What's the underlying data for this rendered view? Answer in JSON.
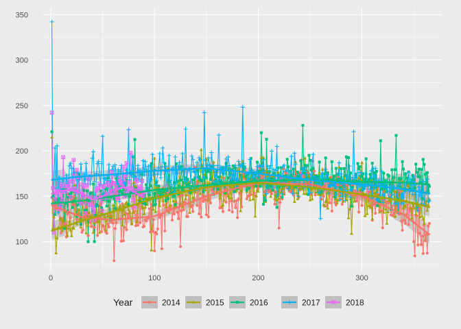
{
  "chart_data": {
    "type": "line",
    "title": "",
    "xlabel": "",
    "ylabel": "",
    "xlim": [
      -8,
      377
    ],
    "ylim": [
      68,
      357
    ],
    "x_ticks": [
      0,
      100,
      200,
      300
    ],
    "y_ticks": [
      100,
      150,
      200,
      250,
      300,
      350
    ],
    "grid": true,
    "legend": {
      "title": "Year",
      "position": "bottom"
    },
    "series": [
      {
        "name": "2014",
        "color": "#F8766D",
        "shape": "circle",
        "x_start": 1,
        "x_end": 365,
        "base": 140,
        "noise": 20,
        "seed": 11,
        "spikes": [
          [
            61,
            79
          ],
          [
            100,
            90
          ],
          [
            359,
            87
          ]
        ],
        "smooth": [
          [
            1,
            140
          ],
          [
            30,
            127
          ],
          [
            60,
            124
          ],
          [
            100,
            128
          ],
          [
            150,
            150
          ],
          [
            200,
            165
          ],
          [
            250,
            163
          ],
          [
            300,
            150
          ],
          [
            340,
            130
          ],
          [
            365,
            108
          ]
        ]
      },
      {
        "name": "2015",
        "color": "#A3A500",
        "shape": "triangle",
        "x_start": 1,
        "x_end": 365,
        "base": 145,
        "noise": 20,
        "seed": 23,
        "spikes": [
          [
            1,
            215
          ],
          [
            145,
            201
          ],
          [
            290,
            109
          ]
        ],
        "smooth": [
          [
            1,
            112
          ],
          [
            30,
            123
          ],
          [
            60,
            133
          ],
          [
            100,
            148
          ],
          [
            150,
            160
          ],
          [
            200,
            165
          ],
          [
            250,
            160
          ],
          [
            300,
            152
          ],
          [
            340,
            145
          ],
          [
            365,
            138
          ]
        ]
      },
      {
        "name": "2016",
        "color": "#00BF7D",
        "shape": "square",
        "x_start": 1,
        "x_end": 365,
        "base": 155,
        "noise": 20,
        "seed": 37,
        "spikes": [
          [
            1,
            221
          ],
          [
            203,
            220
          ],
          [
            243,
            228
          ],
          [
            333,
            217
          ],
          [
            366,
            209
          ]
        ],
        "smooth": [
          [
            1,
            142
          ],
          [
            30,
            145
          ],
          [
            60,
            150
          ],
          [
            100,
            157
          ],
          [
            150,
            162
          ],
          [
            200,
            167
          ],
          [
            250,
            168
          ],
          [
            300,
            166
          ],
          [
            340,
            165
          ],
          [
            365,
            163
          ]
        ]
      },
      {
        "name": "2017",
        "color": "#00B0F6",
        "shape": "plus",
        "x_start": 1,
        "x_end": 365,
        "base": 165,
        "noise": 18,
        "seed": 53,
        "spikes": [
          [
            1,
            342
          ],
          [
            4,
            203
          ],
          [
            50,
            216
          ],
          [
            130,
            224
          ],
          [
            148,
            242
          ],
          [
            185,
            248
          ],
          [
            292,
            221
          ]
        ],
        "smooth": [
          [
            1,
            168
          ],
          [
            30,
            172
          ],
          [
            60,
            174
          ],
          [
            100,
            178
          ],
          [
            150,
            181
          ],
          [
            200,
            175
          ],
          [
            250,
            168
          ],
          [
            300,
            163
          ],
          [
            340,
            158
          ],
          [
            365,
            153
          ]
        ]
      },
      {
        "name": "2018",
        "color": "#E76BF3",
        "shape": "square-x",
        "x_start": 1,
        "x_end": 90,
        "base": 158,
        "noise": 18,
        "seed": 71,
        "spikes": [
          [
            1,
            242
          ],
          [
            3,
            110
          ],
          [
            12,
            193
          ],
          [
            22,
            190
          ],
          [
            77,
            198
          ]
        ],
        "smooth": [
          [
            1,
            153
          ],
          [
            10,
            156
          ],
          [
            20,
            157
          ],
          [
            30,
            153
          ],
          [
            40,
            146
          ],
          [
            50,
            150
          ],
          [
            60,
            157
          ],
          [
            70,
            160
          ],
          [
            80,
            155
          ],
          [
            90,
            148
          ]
        ]
      }
    ]
  }
}
